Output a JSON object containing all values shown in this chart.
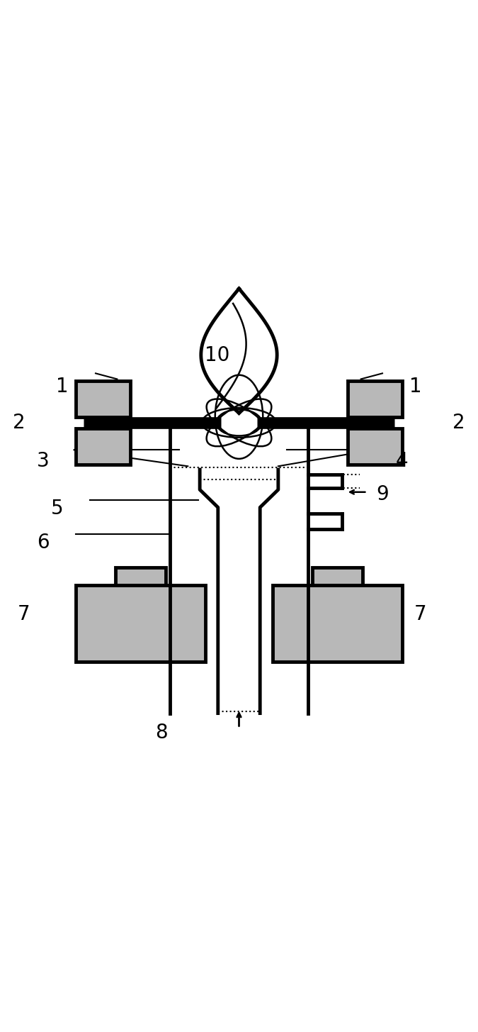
{
  "fig_width": 6.75,
  "fig_height": 14.55,
  "bg_color": "#ffffff",
  "line_color": "#000000",
  "fill_color": "#b8b8b8",
  "lw": 3.5,
  "thin_lw": 1.5,
  "elec_lw": 12,
  "labels": {
    "1l": [
      0.13,
      0.77,
      "1"
    ],
    "1r": [
      0.87,
      0.77,
      "1"
    ],
    "2l": [
      0.04,
      0.695,
      "2"
    ],
    "2r": [
      0.96,
      0.695,
      "2"
    ],
    "3": [
      0.09,
      0.615,
      "3"
    ],
    "4": [
      0.84,
      0.615,
      "4"
    ],
    "5": [
      0.12,
      0.515,
      "5"
    ],
    "6": [
      0.09,
      0.445,
      "6"
    ],
    "7l": [
      0.05,
      0.295,
      "7"
    ],
    "7r": [
      0.88,
      0.295,
      "7"
    ],
    "8": [
      0.338,
      0.047,
      "8"
    ],
    "9": [
      0.8,
      0.545,
      "9"
    ],
    "10": [
      0.455,
      0.835,
      "10"
    ]
  }
}
